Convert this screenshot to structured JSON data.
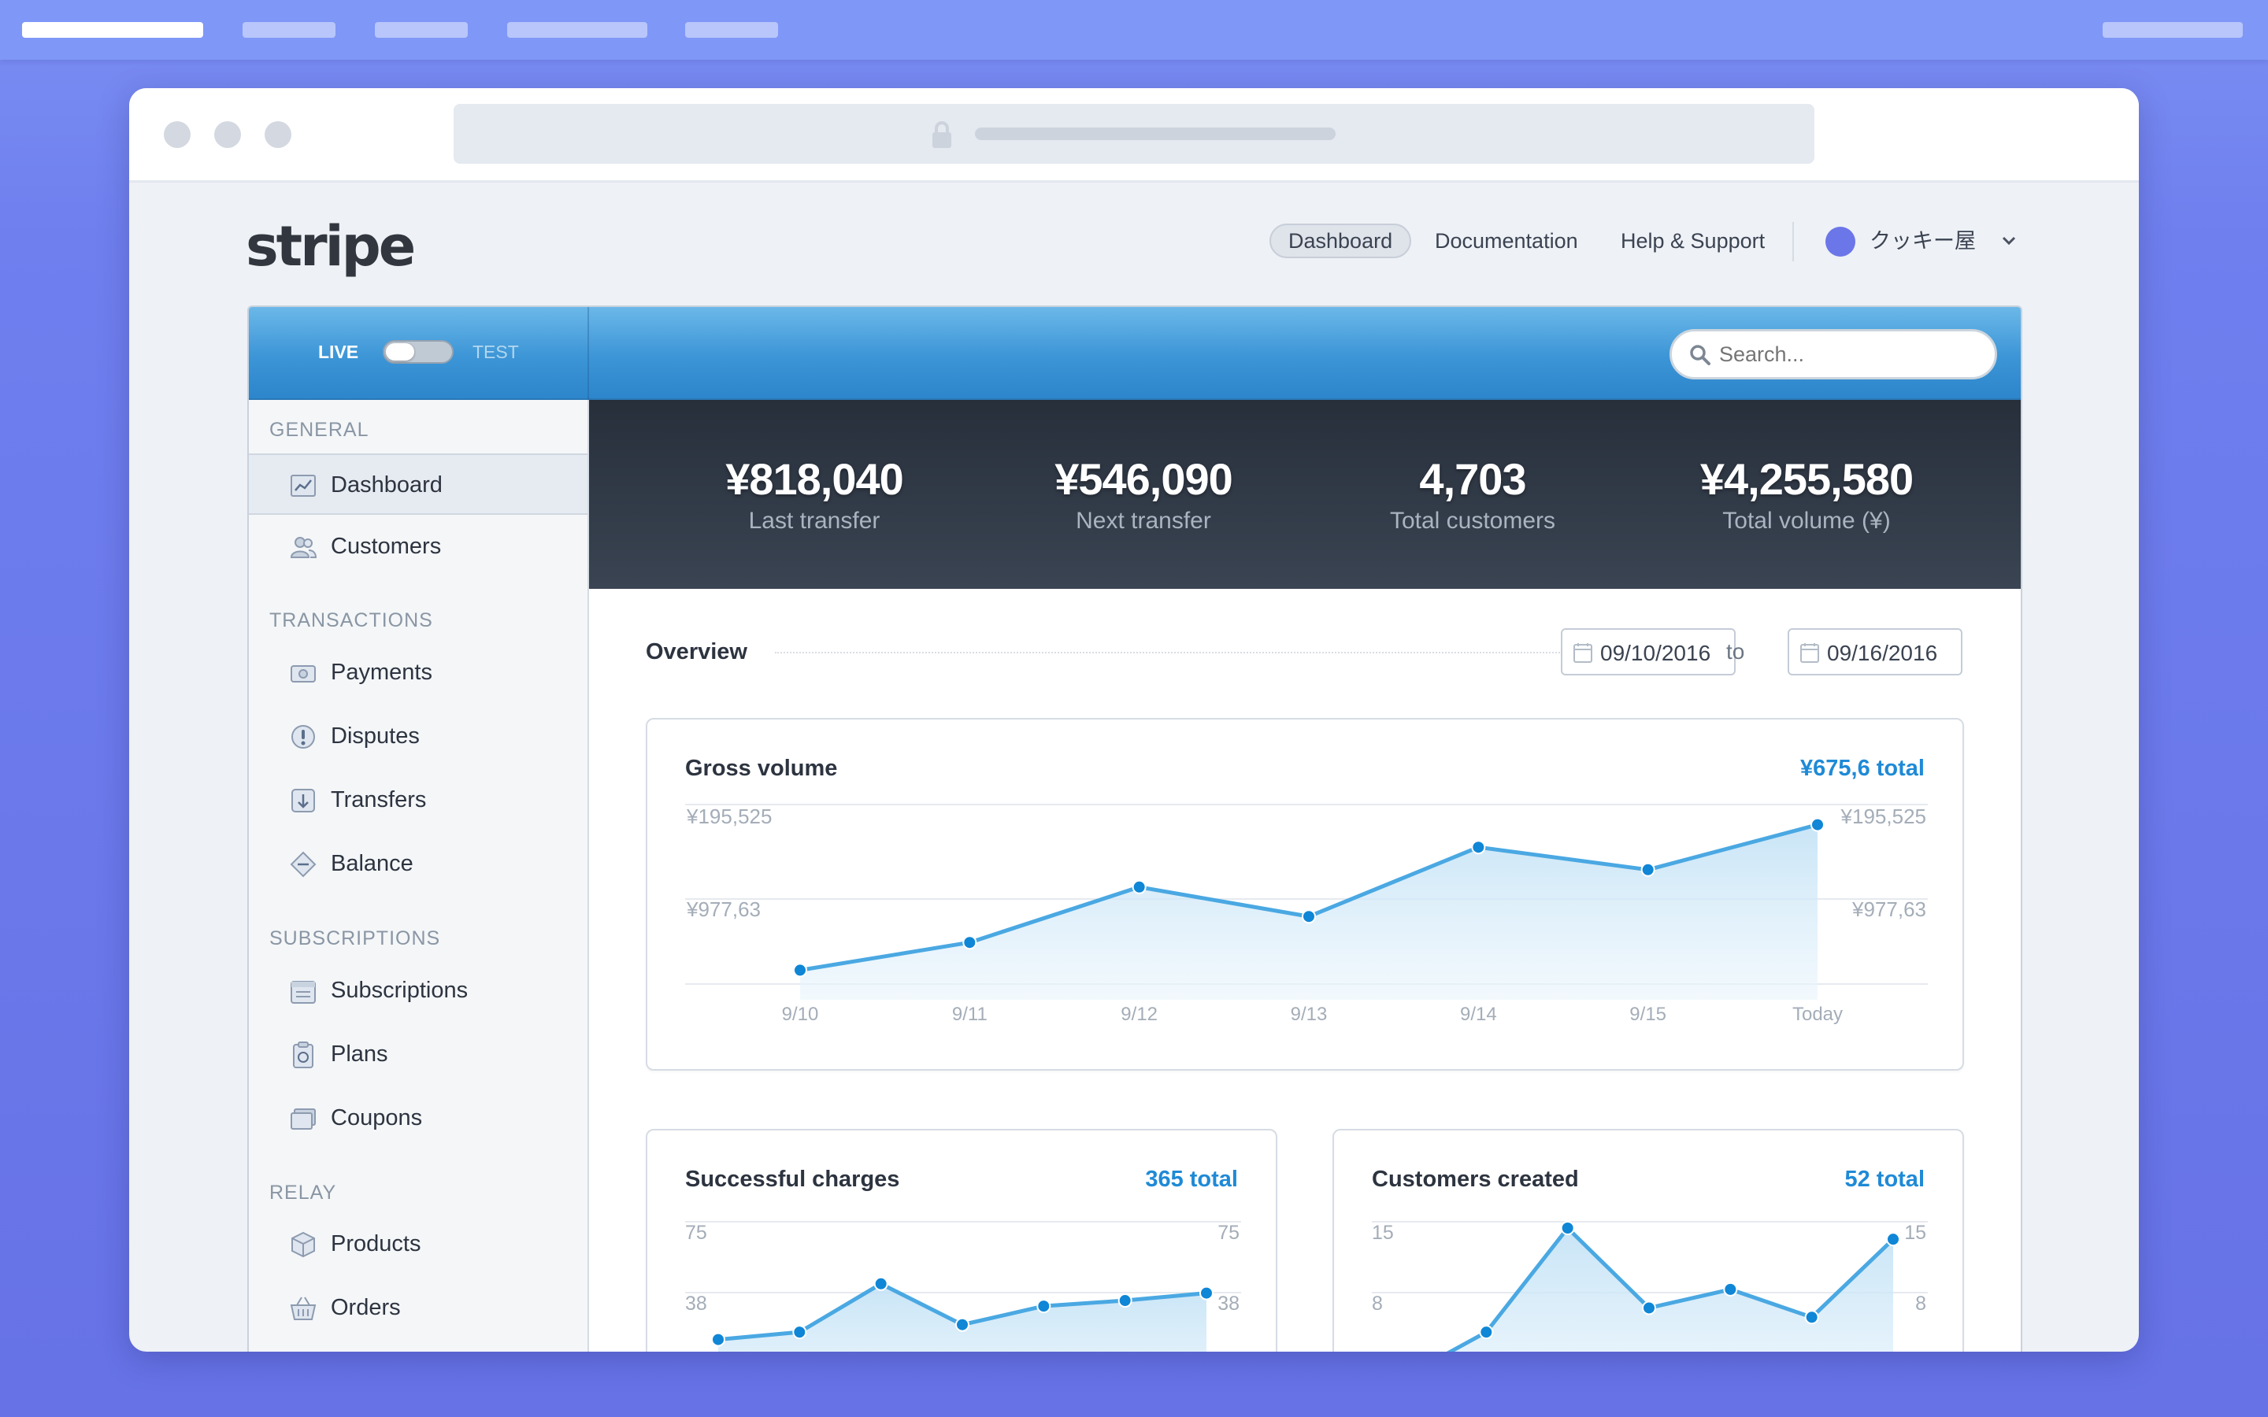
{
  "app": {
    "logo": "stripe"
  },
  "nav": {
    "dashboard": "Dashboard",
    "documentation": "Documentation",
    "help": "Help & Support",
    "account": "クッキー屋"
  },
  "mode": {
    "live": "LIVE",
    "test": "TEST",
    "current": "live"
  },
  "search": {
    "placeholder": "Search..."
  },
  "sidebar": {
    "sections": [
      {
        "title": "GENERAL",
        "items": [
          {
            "label": "Dashboard",
            "icon": "chart-icon",
            "active": true
          },
          {
            "label": "Customers",
            "icon": "users-icon"
          }
        ]
      },
      {
        "title": "TRANSACTIONS",
        "items": [
          {
            "label": "Payments",
            "icon": "payments-icon"
          },
          {
            "label": "Disputes",
            "icon": "alert-icon"
          },
          {
            "label": "Transfers",
            "icon": "transfer-icon"
          },
          {
            "label": "Balance",
            "icon": "scale-icon"
          }
        ]
      },
      {
        "title": "SUBSCRIPTIONS",
        "items": [
          {
            "label": "Subscriptions",
            "icon": "calendar-icon"
          },
          {
            "label": "Plans",
            "icon": "clipboard-icon"
          },
          {
            "label": "Coupons",
            "icon": "coupon-icon"
          }
        ]
      },
      {
        "title": "RELAY",
        "items": [
          {
            "label": "Products",
            "icon": "box-icon"
          },
          {
            "label": "Orders",
            "icon": "basket-icon"
          }
        ]
      }
    ]
  },
  "stats": [
    {
      "value": "¥818,040",
      "label": "Last transfer"
    },
    {
      "value": "¥546,090",
      "label": "Next transfer"
    },
    {
      "value": "4,703",
      "label": "Total customers"
    },
    {
      "value": "¥4,255,580",
      "label": "Total volume (¥)"
    }
  ],
  "overview": {
    "title": "Overview",
    "date_from": "09/10/2016",
    "to_label": "to",
    "date_to": "09/16/2016"
  },
  "colors": {
    "accent": "#1f8ad6",
    "line": "#4aa8e2",
    "point": "#0f86d6",
    "header_blue": "#3c95d6",
    "stats_dark": "#2c3440"
  },
  "chart_data": [
    {
      "type": "area",
      "title": "Gross volume",
      "total_label": "¥675,6 total",
      "categories": [
        "9/10",
        "9/11",
        "9/12",
        "9/13",
        "9/14",
        "9/15",
        "Today"
      ],
      "values": [
        8,
        24,
        56,
        39,
        79,
        66,
        92
      ],
      "y_tick_labels": [
        "¥195,525",
        "¥977,63"
      ],
      "ylim": [
        0,
        100
      ],
      "grid": true
    },
    {
      "type": "area",
      "title": "Successful charges",
      "total_label": "365 total",
      "categories": [
        "",
        "",
        "",
        "",
        "",
        "",
        ""
      ],
      "values": [
        40,
        44,
        70,
        48,
        58,
        61,
        65
      ],
      "y_tick_labels": [
        "75",
        "38"
      ],
      "ylim": [
        0,
        100
      ],
      "grid": true
    },
    {
      "type": "area",
      "title": "Customers created",
      "total_label": "52 total",
      "categories": [
        "",
        "",
        "",
        "",
        "",
        "",
        ""
      ],
      "values": [
        20,
        44,
        100,
        57,
        67,
        52,
        94
      ],
      "y_tick_labels": [
        "15",
        "8"
      ],
      "ylim": [
        0,
        100
      ],
      "grid": true
    }
  ]
}
